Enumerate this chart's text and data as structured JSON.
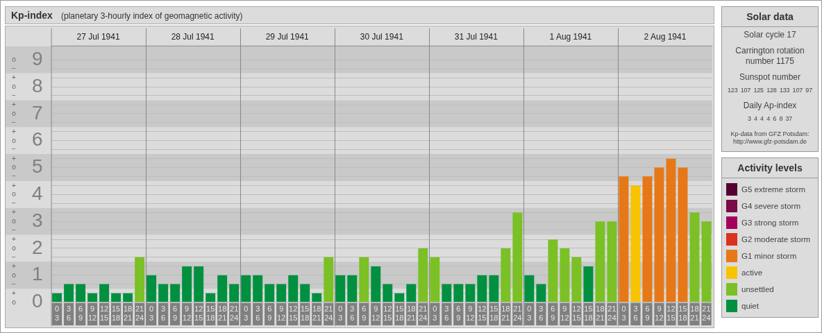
{
  "chart_data": {
    "type": "bar",
    "title": "Kp-index",
    "subtitle": "(planetary 3-hourly index of geomagnetic activity)",
    "legend_title": "Activity levels",
    "legend": "right",
    "stacked": true,
    "grid": "y",
    "categories": [
      "0\n3",
      "3\n6",
      "6\n9",
      "9\n12",
      "12\n15",
      "15\n18",
      "18\n21",
      "21\n24",
      "0\n3",
      "3\n6",
      "6\n9",
      "9\n12",
      "12\n15",
      "15\n18",
      "18\n21",
      "21\n24",
      "0\n3",
      "3\n6",
      "6\n9",
      "9\n12",
      "12\n15",
      "15\n18",
      "18\n21",
      "21\n24",
      "0\n3",
      "3\n6",
      "6\n9",
      "9\n12",
      "12\n15",
      "15\n18",
      "18\n21",
      "21\n24",
      "0\n3",
      "3\n6",
      "6\n9",
      "9\n12",
      "12\n15",
      "15\n18",
      "18\n21",
      "21\n24",
      "0\n3",
      "3\n6",
      "6\n9",
      "9\n12",
      "12\n15",
      "15\n18",
      "18\n21",
      "21\n24",
      "0\n3",
      "3\n6",
      "6\n9",
      "9\n12",
      "12\n15",
      "15\n18",
      "18\n21",
      "21\n24"
    ],
    "ylim": [
      0,
      9.5
    ],
    "yticks": [
      0,
      {
        "value": 0.33,
        "label": null
      },
      {
        "value": 0.67,
        "label": null
      },
      1,
      {
        "value": 1.33,
        "label": null
      },
      {
        "value": 1.67,
        "label": null
      },
      2,
      {
        "value": 2.33,
        "label": null
      },
      {
        "value": 2.67,
        "label": null
      },
      3,
      {
        "value": 3.33,
        "label": null
      },
      {
        "value": 3.67,
        "label": null
      },
      4,
      {
        "value": 4.33,
        "label": null
      },
      {
        "value": 4.67,
        "label": null
      },
      5,
      {
        "value": 5.33,
        "label": null
      },
      {
        "value": 5.67,
        "label": null
      },
      6,
      {
        "value": 6.33,
        "label": null
      },
      {
        "value": 6.67,
        "label": null
      },
      7,
      {
        "value": 7.33,
        "label": null
      },
      {
        "value": 7.67,
        "label": null
      },
      8,
      {
        "value": 8.33,
        "label": null
      },
      {
        "value": 8.67,
        "label": null
      },
      9
    ],
    "bands": [
      {
        "axis": "y",
        "from": 0.5,
        "to": 1.5,
        "color": "#c9c9c9"
      },
      {
        "axis": "y",
        "from": 2.5,
        "to": 3.5,
        "color": "#c9c9c9"
      },
      {
        "axis": "y",
        "from": 4.5,
        "to": 5.5,
        "color": "#c9c9c9"
      },
      {
        "axis": "y",
        "from": 6.5,
        "to": 7.5,
        "color": "#c9c9c9"
      },
      {
        "axis": "y",
        "from": 8.5,
        "to": 9.5,
        "color": "#c9c9c9"
      }
    ],
    "series": [
      {
        "name": "G5 extreme storm",
        "color": "#550030",
        "values": [
          null,
          null,
          null,
          null,
          null,
          null,
          null,
          null,
          null,
          null,
          null,
          null,
          null,
          null,
          null,
          null,
          null,
          null,
          null,
          null,
          null,
          null,
          null,
          null,
          null,
          null,
          null,
          null,
          null,
          null,
          null,
          null,
          null,
          null,
          null,
          null,
          null,
          null,
          null,
          null,
          null,
          null,
          null,
          null,
          null,
          null,
          null,
          null,
          null,
          null,
          null,
          null,
          null,
          null,
          null,
          null
        ]
      },
      {
        "name": "G4 severe storm",
        "color": "#7a0a48",
        "values": [
          null,
          null,
          null,
          null,
          null,
          null,
          null,
          null,
          null,
          null,
          null,
          null,
          null,
          null,
          null,
          null,
          null,
          null,
          null,
          null,
          null,
          null,
          null,
          null,
          null,
          null,
          null,
          null,
          null,
          null,
          null,
          null,
          null,
          null,
          null,
          null,
          null,
          null,
          null,
          null,
          null,
          null,
          null,
          null,
          null,
          null,
          null,
          null,
          null,
          null,
          null,
          null,
          null,
          null,
          null,
          null
        ]
      },
      {
        "name": "G3 strong storm",
        "color": "#a6005e",
        "values": [
          null,
          null,
          null,
          null,
          null,
          null,
          null,
          null,
          null,
          null,
          null,
          null,
          null,
          null,
          null,
          null,
          null,
          null,
          null,
          null,
          null,
          null,
          null,
          null,
          null,
          null,
          null,
          null,
          null,
          null,
          null,
          null,
          null,
          null,
          null,
          null,
          null,
          null,
          null,
          null,
          null,
          null,
          null,
          null,
          null,
          null,
          null,
          null,
          null,
          null,
          null,
          null,
          null,
          null,
          null,
          null
        ]
      },
      {
        "name": "G2 moderate storm",
        "color": "#d9321e",
        "values": [
          null,
          null,
          null,
          null,
          null,
          null,
          null,
          null,
          null,
          null,
          null,
          null,
          null,
          null,
          null,
          null,
          null,
          null,
          null,
          null,
          null,
          null,
          null,
          null,
          null,
          null,
          null,
          null,
          null,
          null,
          null,
          null,
          null,
          null,
          null,
          null,
          null,
          null,
          null,
          null,
          null,
          null,
          null,
          null,
          null,
          null,
          null,
          null,
          null,
          null,
          null,
          null,
          null,
          null,
          null,
          null
        ]
      },
      {
        "name": "G1 minor storm",
        "color": "#e67817",
        "values": [
          null,
          null,
          null,
          null,
          null,
          null,
          null,
          null,
          null,
          null,
          null,
          null,
          null,
          null,
          null,
          null,
          null,
          null,
          null,
          null,
          null,
          null,
          null,
          null,
          null,
          null,
          null,
          null,
          null,
          null,
          null,
          null,
          null,
          null,
          null,
          null,
          null,
          null,
          null,
          null,
          null,
          null,
          null,
          null,
          null,
          null,
          null,
          null,
          4.67,
          null,
          4.67,
          5,
          5.33,
          5,
          null,
          null
        ]
      },
      {
        "name": "active",
        "color": "#f8c300",
        "values": [
          null,
          null,
          null,
          null,
          null,
          null,
          null,
          null,
          null,
          null,
          null,
          null,
          null,
          null,
          null,
          null,
          null,
          null,
          null,
          null,
          null,
          null,
          null,
          null,
          null,
          null,
          null,
          null,
          null,
          null,
          null,
          null,
          null,
          null,
          null,
          null,
          null,
          null,
          null,
          null,
          null,
          null,
          null,
          null,
          null,
          null,
          null,
          null,
          null,
          4.33,
          null,
          null,
          null,
          null,
          null,
          null
        ]
      },
      {
        "name": "unsettled",
        "color": "#7bc025",
        "values": [
          null,
          null,
          null,
          null,
          null,
          null,
          null,
          1.67,
          null,
          null,
          null,
          null,
          null,
          null,
          null,
          null,
          null,
          null,
          null,
          null,
          null,
          null,
          null,
          1.67,
          null,
          null,
          1.67,
          null,
          null,
          null,
          null,
          2,
          1.67,
          null,
          null,
          null,
          null,
          null,
          2,
          3.33,
          null,
          null,
          2.33,
          2,
          1.67,
          null,
          3,
          3,
          null,
          null,
          null,
          null,
          null,
          null,
          3.33,
          3
        ]
      },
      {
        "name": "quiet",
        "color": "#009040",
        "values": [
          0.33,
          0.67,
          0.67,
          0.33,
          0.67,
          0.33,
          0.33,
          null,
          1,
          0.67,
          0.67,
          1.33,
          1.33,
          0.33,
          1,
          0.67,
          1,
          1,
          0.67,
          0.67,
          1,
          0.67,
          0.33,
          null,
          1,
          1,
          null,
          1.33,
          0.67,
          0.33,
          0.67,
          null,
          null,
          0.67,
          0.67,
          0.67,
          1,
          1,
          null,
          null,
          1,
          0.67,
          null,
          null,
          null,
          1.33,
          null,
          null,
          null,
          null,
          null,
          null,
          null,
          null,
          null,
          null
        ]
      }
    ],
    "annotations": [
      "27 Jul 1941",
      "28 Jul 1941",
      "29 Jul 1941",
      "30 Jul 1941",
      "31 Jul 1941",
      "1 Aug 1941",
      "2 Aug 1941",
      "o",
      "+",
      "−",
      "o",
      "+",
      "−",
      "o",
      "+",
      "−",
      "o",
      "+",
      "−",
      "o",
      "+",
      "−",
      "o",
      "+",
      "−",
      "o",
      "+",
      "−",
      "o",
      "+",
      "−",
      "o",
      "+",
      "−",
      "o",
      "Solar data",
      "Solar cycle 17",
      "Carrington rotation number 1175",
      "Sunspot number",
      "123 107 125 128 133 107 97",
      "Daily Ap-index",
      "3 4 4 4 6 8 37",
      "Kp-data from GFZ Potsdam: http://www.gfz-potsdam.de"
    ]
  }
}
